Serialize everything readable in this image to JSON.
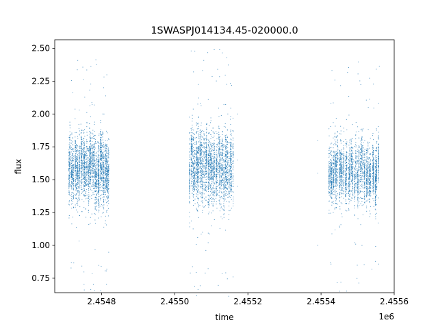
{
  "chart_data": {
    "type": "scatter",
    "title": "1SWASPJ014134.45-020000.0",
    "xlabel": "time",
    "ylabel": "flux",
    "x_offset_label": "1e6",
    "xlim": [
      2454672,
      2455600
    ],
    "ylim": [
      0.64,
      2.565
    ],
    "x_ticks": [
      2454800,
      2455000,
      2455200,
      2455400,
      2455600
    ],
    "x_tick_labels": [
      "2.4548",
      "2.4550",
      "2.4552",
      "2.4554",
      "2.4556"
    ],
    "y_ticks": [
      0.75,
      1.0,
      1.25,
      1.5,
      1.75,
      2.0,
      2.25,
      2.5
    ],
    "y_tick_labels": [
      "0.75",
      "1.00",
      "1.25",
      "1.50",
      "1.75",
      "2.00",
      "2.25",
      "2.50"
    ],
    "grid": false,
    "marker_color": "#1f77b4",
    "seasons": [
      {
        "x_range": [
          2454710,
          2454822
        ],
        "typical_flux_range": [
          1.35,
          1.8
        ],
        "flux_extent": [
          0.65,
          2.44
        ]
      },
      {
        "x_range": [
          2455040,
          2455162
        ],
        "typical_flux_range": [
          1.35,
          1.85
        ],
        "flux_extent": [
          0.61,
          2.51
        ]
      },
      {
        "x_range": [
          2455420,
          2455560
        ],
        "typical_flux_range": [
          1.35,
          1.75
        ],
        "flux_extent": [
          0.62,
          2.47
        ]
      }
    ],
    "sparse_points": [
      {
        "x": 2455172,
        "y": 2.0
      },
      {
        "x": 2455172,
        "y": 1.65
      },
      {
        "x": 2455172,
        "y": 1.45
      },
      {
        "x": 2455391,
        "y": 1.8
      },
      {
        "x": 2455391,
        "y": 1.55
      },
      {
        "x": 2455391,
        "y": 1.0
      }
    ]
  }
}
